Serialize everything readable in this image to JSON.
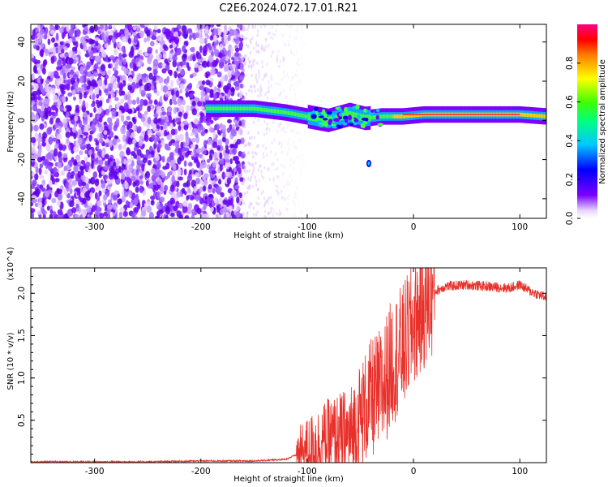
{
  "title": "C2E6.2024.072.17.01.R21",
  "colors": {
    "snr_line": "#e8302a",
    "axis": "#000000"
  },
  "chart_data": [
    {
      "type": "heatmap",
      "xlabel": "Height of straight line (km)",
      "ylabel": "Frequency (Hz)",
      "xlim": [
        -360,
        125
      ],
      "ylim": [
        -50,
        49
      ],
      "x_ticks": [
        -300,
        -200,
        -100,
        0,
        100
      ],
      "y_ticks": [
        -40,
        -20,
        0,
        20,
        40
      ],
      "x_tick_labels": [
        "-300",
        "-200",
        "-100",
        "0",
        "100"
      ],
      "y_tick_labels": [
        "-40",
        "-20",
        "0",
        "20",
        "40"
      ],
      "colorscale": "rainbow (purple-blue-cyan-green-yellow-red-magenta)",
      "colorbar": {
        "label": "Normalized spectral amplitude",
        "range": [
          0.0,
          1.0
        ],
        "ticks": [
          0.0,
          0.2,
          0.4,
          0.6,
          0.8
        ],
        "tick_labels": [
          "0.0",
          "0.2",
          "0.4",
          "0.6",
          "0.8"
        ]
      },
      "features": {
        "noise_region_x": [
          -360,
          -160
        ],
        "carrier_trace": {
          "x": [
            -195,
            -150,
            -120,
            -100,
            -80,
            -60,
            -45,
            -30,
            -10,
            10,
            50,
            100,
            125
          ],
          "y": [
            6,
            6,
            4,
            2,
            0,
            3,
            1,
            2,
            2,
            3,
            3,
            3,
            2
          ]
        },
        "isolated_blob": {
          "x": -42,
          "y": -22
        }
      }
    },
    {
      "type": "line",
      "xlabel": "Height of straight line (km)",
      "ylabel": "SNR (10 * v/v)",
      "y_multiplier": "(x10^4)",
      "xlim": [
        -360,
        125
      ],
      "ylim": [
        0,
        2.3
      ],
      "x_ticks": [
        -300,
        -200,
        -100,
        0,
        100
      ],
      "y_ticks": [
        0.5,
        1.0,
        1.5,
        2.0
      ],
      "x_tick_labels": [
        "-300",
        "-200",
        "-100",
        "0",
        "100"
      ],
      "y_tick_labels": [
        "0.5",
        "1.0",
        "1.5",
        "2.0"
      ],
      "series": [
        {
          "name": "",
          "x": [
            -360,
            -300,
            -250,
            -200,
            -150,
            -120,
            -105,
            -95,
            -80,
            -60,
            -50,
            -40,
            -30,
            -20,
            -10,
            0,
            10,
            20,
            30,
            50,
            70,
            90,
            100,
            110,
            125
          ],
          "y": [
            0.01,
            0.01,
            0.01,
            0.02,
            0.02,
            0.04,
            0.12,
            0.2,
            0.28,
            0.3,
            0.55,
            0.75,
            0.85,
            1.2,
            1.35,
            1.65,
            1.85,
            2.02,
            2.08,
            2.1,
            2.08,
            2.06,
            2.1,
            2.02,
            1.95
          ]
        }
      ]
    }
  ]
}
